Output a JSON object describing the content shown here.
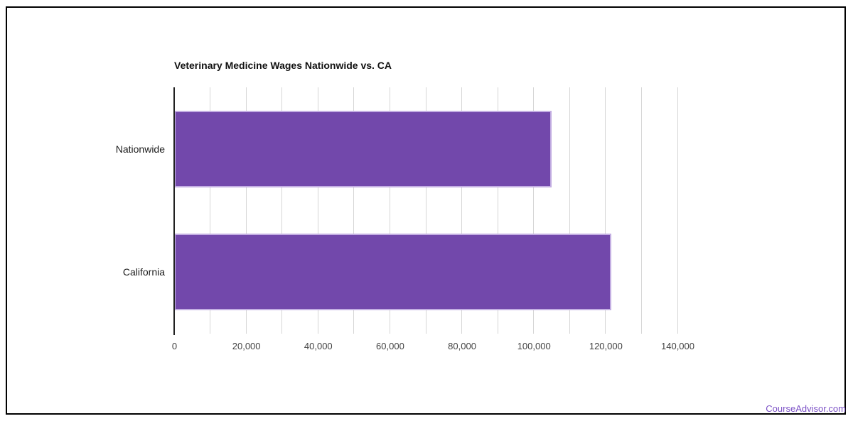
{
  "title": "Veterinary Medicine Wages Nationwide vs. CA",
  "watermark": "CourseAdvisor.com",
  "colors": {
    "bar": "#7248ab",
    "bar_edge": "#c3aee2",
    "grid": "#d6d6d6",
    "axis": "#212121",
    "title_text": "#111111",
    "tick_text": "#434343",
    "category_text": "#1b1b1b",
    "watermark_text": "#7c51c6",
    "frame_border": "#000000",
    "background": "#ffffff"
  },
  "chart_data": {
    "type": "bar",
    "orientation": "horizontal",
    "title": "Veterinary Medicine Wages Nationwide vs. CA",
    "categories": [
      "Nationwide",
      "California"
    ],
    "values": [
      105000,
      121700
    ],
    "xlabel": "",
    "ylabel": "",
    "xlim": [
      0,
      140000
    ],
    "x_major_tick_step": 20000,
    "x_minor_grid_step": 10000,
    "x_tick_labels": [
      "0",
      "20,000",
      "40,000",
      "60,000",
      "80,000",
      "100,000",
      "120,000",
      "140,000"
    ],
    "grid": "vertical-only",
    "legend_position": "none"
  }
}
